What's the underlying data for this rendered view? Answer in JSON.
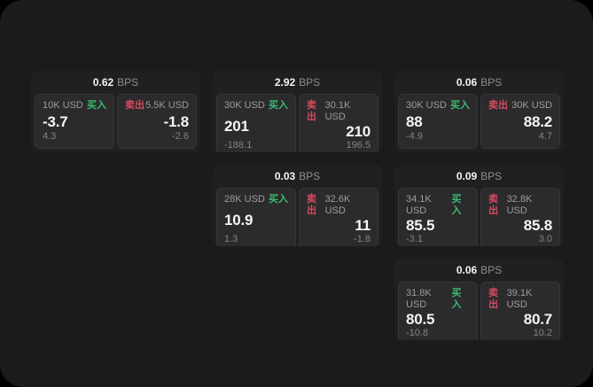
{
  "labels": {
    "bps_unit": "BPS",
    "buy": "买入",
    "sell": "卖出"
  },
  "colors": {
    "background": "#000000",
    "screen": "#1b1b1d",
    "card": "#202022",
    "tile": "#2b2b2d",
    "buy_green": "#3eba70",
    "sell_red": "#d84a5f",
    "primary_text": "#f5f5f7",
    "muted_text": "#8e8e91"
  },
  "cards": [
    {
      "bps": "0.62",
      "buy": {
        "amount": "10K USD",
        "price": "-3.7",
        "change": "4.3"
      },
      "sell": {
        "amount": "5.5K USD",
        "price": "-1.8",
        "change": "-2.6"
      }
    },
    {
      "bps": "2.92",
      "buy": {
        "amount": "30K USD",
        "price": "201",
        "change": "-188.1"
      },
      "sell": {
        "amount": "30.1K USD",
        "price": "210",
        "change": "196.5"
      }
    },
    {
      "bps": "0.06",
      "buy": {
        "amount": "30K USD",
        "price": "88",
        "change": "-4.9"
      },
      "sell": {
        "amount": "30K USD",
        "price": "88.2",
        "change": "4.7"
      }
    },
    {
      "bps": "0.03",
      "buy": {
        "amount": "28K USD",
        "price": "10.9",
        "change": "1.3"
      },
      "sell": {
        "amount": "32.6K USD",
        "price": "11",
        "change": "-1.8"
      }
    },
    {
      "bps": "0.09",
      "buy": {
        "amount": "34.1K USD",
        "price": "85.5",
        "change": "-3.1"
      },
      "sell": {
        "amount": "32.8K USD",
        "price": "85.8",
        "change": "3.0"
      }
    },
    {
      "bps": "0.06",
      "buy": {
        "amount": "31.8K USD",
        "price": "80.5",
        "change": "-10.8"
      },
      "sell": {
        "amount": "39.1K USD",
        "price": "80.7",
        "change": "10.2"
      }
    }
  ]
}
